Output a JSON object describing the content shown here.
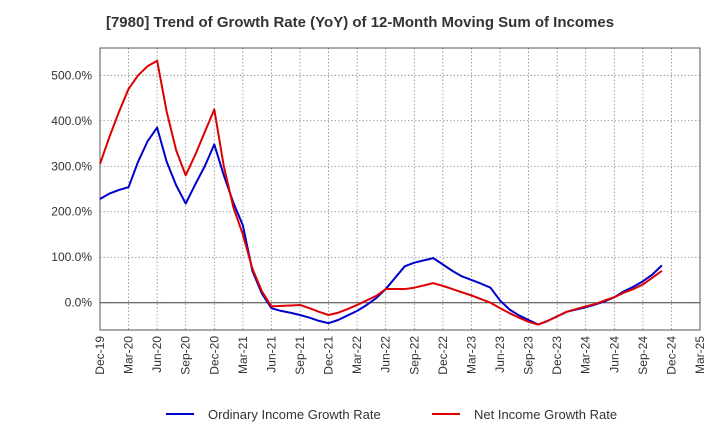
{
  "chart_data": {
    "type": "line",
    "title": "[7980]  Trend of Growth Rate (YoY) of 12-Month Moving Sum of Incomes",
    "xlabel": "",
    "ylabel": "",
    "ylim": [
      -60,
      560
    ],
    "y_ticks": [
      0,
      100,
      200,
      300,
      400,
      500
    ],
    "y_tick_labels": [
      "0.0%",
      "100.0%",
      "200.0%",
      "300.0%",
      "400.0%",
      "500.0%"
    ],
    "x_tick_labels": [
      "Dec-19",
      "Mar-20",
      "Jun-20",
      "Sep-20",
      "Dec-20",
      "Mar-21",
      "Jun-21",
      "Sep-21",
      "Dec-21",
      "Mar-22",
      "Jun-22",
      "Sep-22",
      "Dec-22",
      "Mar-23",
      "Jun-23",
      "Sep-23",
      "Dec-23",
      "Mar-24",
      "Jun-24",
      "Sep-24",
      "Dec-24",
      "Mar-25"
    ],
    "grid": true,
    "legend_position": "bottom",
    "series": [
      {
        "name": "Ordinary Income Growth Rate",
        "color": "#0000cc",
        "values": [
          228,
          240,
          248,
          254,
          310,
          355,
          385,
          310,
          258,
          218,
          260,
          300,
          348,
          280,
          220,
          170,
          70,
          20,
          -12,
          -18,
          -22,
          -27,
          -33,
          -40,
          -45,
          -38,
          -28,
          -18,
          -5,
          10,
          30,
          55,
          80,
          88,
          93,
          98,
          84,
          70,
          58,
          50,
          42,
          33,
          5,
          -15,
          -28,
          -38,
          -48,
          -40,
          -30,
          -20,
          -15,
          -10,
          -4,
          3,
          12,
          25,
          35,
          47,
          62,
          82
        ]
      },
      {
        "name": "Net Income Growth Rate",
        "color": "#dd0000",
        "values": [
          305,
          365,
          420,
          470,
          500,
          520,
          532,
          420,
          335,
          280,
          325,
          375,
          425,
          300,
          210,
          150,
          75,
          25,
          -8,
          -7,
          -6,
          -5,
          -12,
          -20,
          -27,
          -22,
          -14,
          -5,
          5,
          15,
          30,
          30,
          30,
          33,
          38,
          43,
          37,
          30,
          23,
          16,
          8,
          0,
          -12,
          -23,
          -33,
          -42,
          -48,
          -40,
          -30,
          -20,
          -14,
          -8,
          -3,
          5,
          12,
          22,
          30,
          40,
          55,
          70
        ]
      }
    ]
  }
}
